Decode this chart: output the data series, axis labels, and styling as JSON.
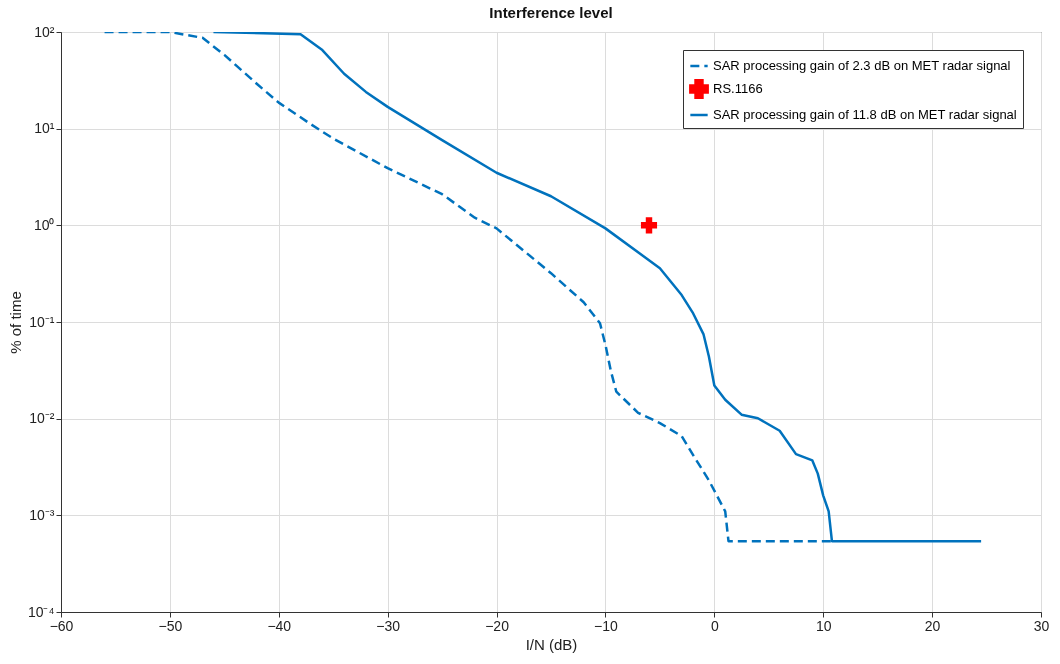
{
  "chart_data": {
    "type": "line",
    "title": "Interference level",
    "xlabel": "I/N (dB)",
    "ylabel": "% of time",
    "log": "y",
    "grid": true,
    "legend": "top right",
    "xlim": [
      -60,
      30
    ],
    "xticks": [
      -60,
      -50,
      -40,
      -30,
      -20,
      -10,
      0,
      10,
      20,
      30
    ],
    "ylim": [
      0.0001,
      100
    ],
    "yticks": [
      {
        "value": 0.0001,
        "label": "10⁻⁴"
      },
      {
        "value": 0.001,
        "label": "10⁻³"
      },
      {
        "value": 0.01,
        "label": "10⁻²"
      },
      {
        "value": 0.1,
        "label": "10⁻¹"
      },
      {
        "value": 1,
        "label": "10⁰"
      },
      {
        "value": 10,
        "label": "10¹"
      },
      {
        "value": 100,
        "label": "10²"
      }
    ],
    "series": [
      {
        "name": "SAR processing gain of 2.3 dB on MET radar signal",
        "line_style": "dashed",
        "color": "#0072bd",
        "x": [
          -56,
          -50,
          -47,
          -45,
          -42,
          -40,
          -37,
          -35,
          -30,
          -25,
          -22,
          -20,
          -15,
          -12,
          -10.5,
          -10,
          -9.5,
          -9,
          -7,
          -5,
          -3,
          -2,
          -0.5,
          1,
          1.3,
          11
        ],
        "values": [
          100,
          100,
          87,
          58,
          29,
          18.6,
          11,
          7.9,
          3.9,
          2.1,
          1.2,
          0.93,
          0.32,
          0.16,
          0.097,
          0.058,
          0.031,
          0.019,
          0.0115,
          0.009,
          0.0066,
          0.0043,
          0.0023,
          0.0011,
          0.00054,
          0.00054
        ]
      },
      {
        "name": "RS.1166",
        "type": "scatter",
        "marker": "cross",
        "color": "#ff0000",
        "x": [
          -6
        ],
        "values": [
          1
        ]
      },
      {
        "name": "SAR processing gain of 11.8 dB on MET radar signal",
        "line_style": "solid",
        "color": "#0072bd",
        "x": [
          -46,
          -38,
          -36,
          -34,
          -32,
          -30,
          -25,
          -20,
          -15,
          -10,
          -5,
          -3,
          -2,
          -1,
          -0.5,
          0,
          1,
          2.5,
          4,
          6,
          7.5,
          9,
          9.5,
          10,
          10.5,
          10.8,
          24.5
        ],
        "values": [
          100,
          95,
          65,
          37,
          24,
          16.8,
          7.6,
          3.5,
          2.0,
          0.93,
          0.36,
          0.19,
          0.126,
          0.075,
          0.044,
          0.022,
          0.0157,
          0.011,
          0.0101,
          0.0075,
          0.0043,
          0.0037,
          0.0027,
          0.0016,
          0.0011,
          0.00054,
          0.00054
        ]
      }
    ]
  }
}
